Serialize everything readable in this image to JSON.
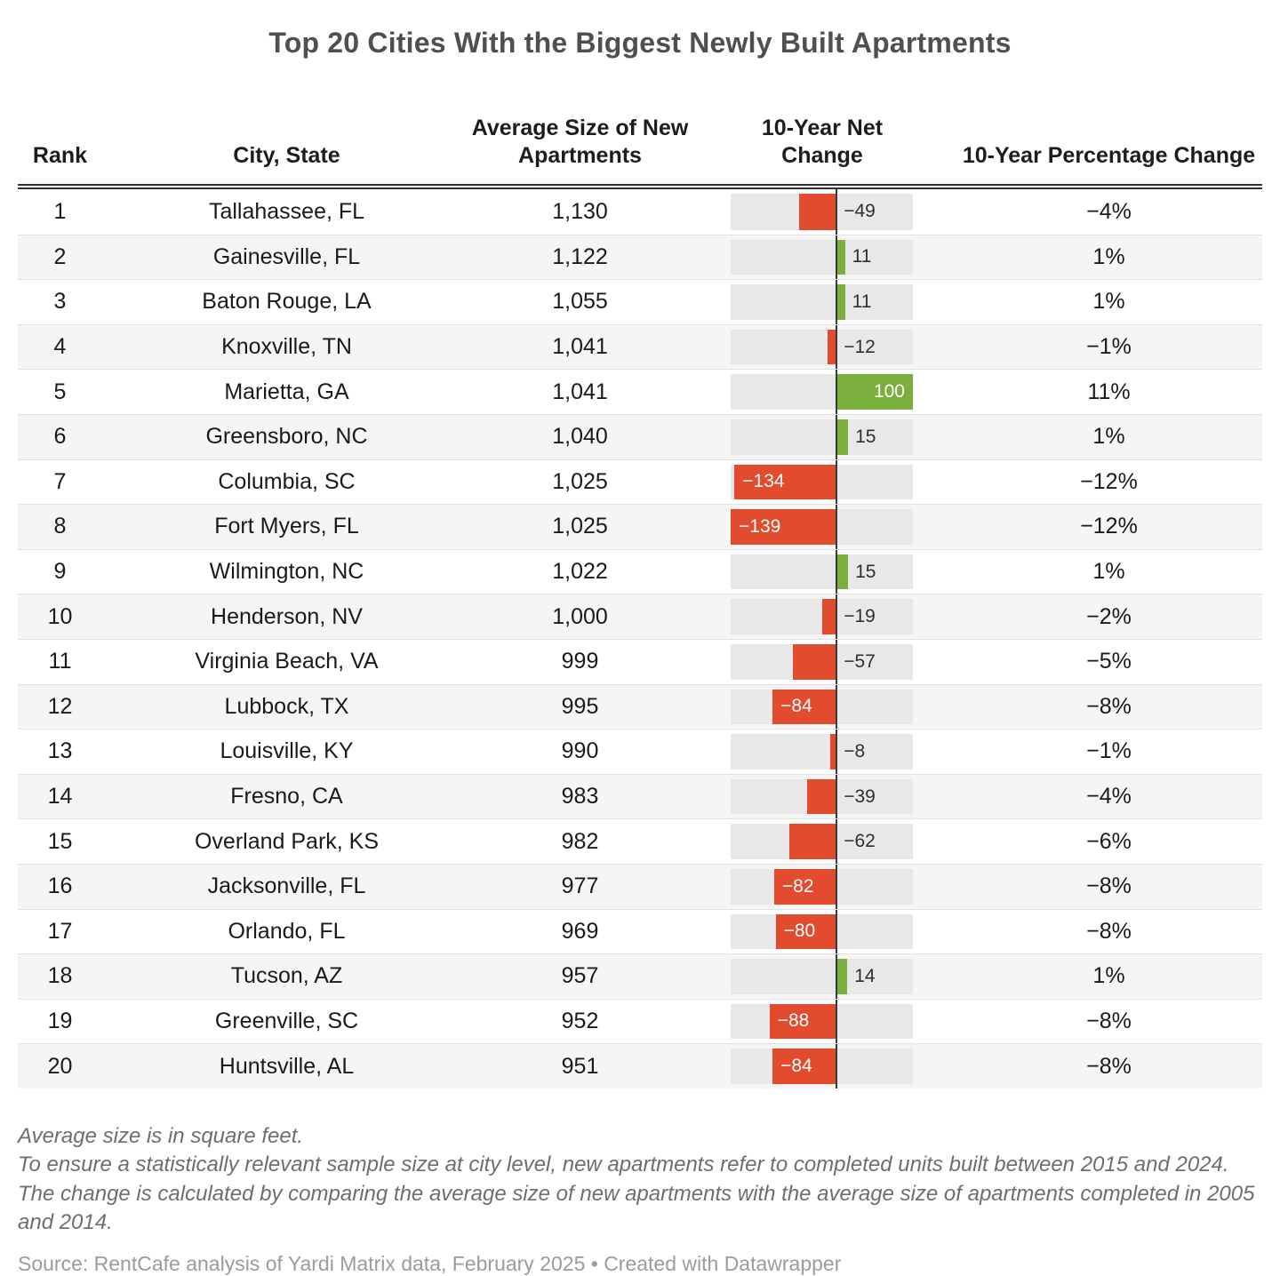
{
  "chart_data": {
    "type": "table",
    "title": "Top 20 Cities With the Biggest Newly Built Apartments",
    "columns": [
      "Rank",
      "City, State",
      "Average Size of New\nApartments",
      "10-Year Net\nChange",
      "10-Year Percentage Change"
    ],
    "bar_axis": {
      "min": -139,
      "max": 100
    },
    "rows": [
      {
        "rank": 1,
        "city": "Tallahassee, FL",
        "size": "1,130",
        "net": -49,
        "net_label": "−49",
        "pct": "−4%"
      },
      {
        "rank": 2,
        "city": "Gainesville, FL",
        "size": "1,122",
        "net": 11,
        "net_label": "11",
        "pct": "1%"
      },
      {
        "rank": 3,
        "city": "Baton Rouge, LA",
        "size": "1,055",
        "net": 11,
        "net_label": "11",
        "pct": "1%"
      },
      {
        "rank": 4,
        "city": "Knoxville, TN",
        "size": "1,041",
        "net": -12,
        "net_label": "−12",
        "pct": "−1%"
      },
      {
        "rank": 5,
        "city": "Marietta, GA",
        "size": "1,041",
        "net": 100,
        "net_label": "100",
        "pct": "11%"
      },
      {
        "rank": 6,
        "city": "Greensboro, NC",
        "size": "1,040",
        "net": 15,
        "net_label": "15",
        "pct": "1%"
      },
      {
        "rank": 7,
        "city": "Columbia, SC",
        "size": "1,025",
        "net": -134,
        "net_label": "−134",
        "pct": "−12%"
      },
      {
        "rank": 8,
        "city": "Fort Myers, FL",
        "size": "1,025",
        "net": -139,
        "net_label": "−139",
        "pct": "−12%"
      },
      {
        "rank": 9,
        "city": "Wilmington, NC",
        "size": "1,022",
        "net": 15,
        "net_label": "15",
        "pct": "1%"
      },
      {
        "rank": 10,
        "city": "Henderson, NV",
        "size": "1,000",
        "net": -19,
        "net_label": "−19",
        "pct": "−2%"
      },
      {
        "rank": 11,
        "city": "Virginia Beach, VA",
        "size": "999",
        "net": -57,
        "net_label": "−57",
        "pct": "−5%"
      },
      {
        "rank": 12,
        "city": "Lubbock, TX",
        "size": "995",
        "net": -84,
        "net_label": "−84",
        "pct": "−8%"
      },
      {
        "rank": 13,
        "city": "Louisville, KY",
        "size": "990",
        "net": -8,
        "net_label": "−8",
        "pct": "−1%"
      },
      {
        "rank": 14,
        "city": "Fresno, CA",
        "size": "983",
        "net": -39,
        "net_label": "−39",
        "pct": "−4%"
      },
      {
        "rank": 15,
        "city": "Overland Park, KS",
        "size": "982",
        "net": -62,
        "net_label": "−62",
        "pct": "−6%"
      },
      {
        "rank": 16,
        "city": "Jacksonville, FL",
        "size": "977",
        "net": -82,
        "net_label": "−82",
        "pct": "−8%"
      },
      {
        "rank": 17,
        "city": "Orlando, FL",
        "size": "969",
        "net": -80,
        "net_label": "−80",
        "pct": "−8%"
      },
      {
        "rank": 18,
        "city": "Tucson, AZ",
        "size": "957",
        "net": 14,
        "net_label": "14",
        "pct": "1%"
      },
      {
        "rank": 19,
        "city": "Greenville, SC",
        "size": "952",
        "net": -88,
        "net_label": "−88",
        "pct": "−8%"
      },
      {
        "rank": 20,
        "city": "Huntsville, AL",
        "size": "951",
        "net": -84,
        "net_label": "−84",
        "pct": "−8%"
      }
    ]
  },
  "colors": {
    "negative": "#e24b2d",
    "positive": "#7aaf3e",
    "track": "#e8e8e8",
    "zero_axis": "#3a3a3a",
    "stripe": "#f5f5f5"
  },
  "notes": [
    "Average size is in square feet.",
    "To ensure a statistically relevant sample size at city level, new apartments refer to completed units built between 2015 and 2024.",
    "The change is calculated by comparing the average size of new apartments with the average size of apartments completed in 2005 and 2014."
  ],
  "source": "Source: RentCafe analysis of Yardi Matrix data, February 2025 • Created with Datawrapper"
}
